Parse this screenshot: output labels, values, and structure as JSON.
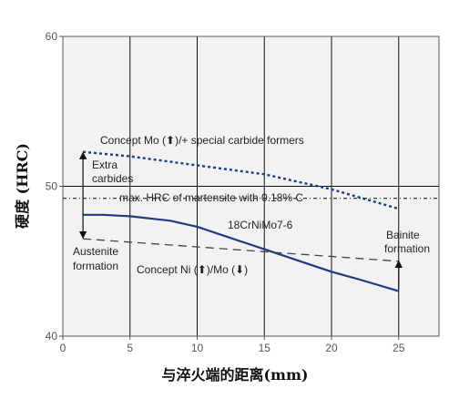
{
  "chart_data": {
    "type": "line",
    "xlabel": "与淬火端的距离(mm)",
    "ylabel": "硬度 (HRC)",
    "xlim": [
      0,
      28
    ],
    "ylim": [
      40,
      60
    ],
    "xticks": [
      0,
      5,
      10,
      15,
      20,
      25
    ],
    "yticks": [
      40,
      50,
      60
    ],
    "grid": true,
    "colors": {
      "plot_bg": "#f2f2f2",
      "grid": "#111111",
      "concept_mo": "#1a3d8f",
      "base": "#1f3c82",
      "concept_ni": "#444444",
      "martensite": "#222222"
    },
    "series": [
      {
        "name": "Concept Mo (↑)/+ special carbide formers",
        "style": "dotted",
        "x": [
          1.5,
          5,
          10,
          15,
          20,
          25
        ],
        "y": [
          52.3,
          52.0,
          51.4,
          50.8,
          49.8,
          48.5
        ]
      },
      {
        "name": "18CrNiMo7-6",
        "style": "solid",
        "x": [
          1.5,
          3,
          5,
          8,
          10,
          12,
          15,
          18,
          20,
          22,
          25
        ],
        "y": [
          48.1,
          48.1,
          48.0,
          47.7,
          47.3,
          46.7,
          45.8,
          44.9,
          44.3,
          43.8,
          43.0
        ]
      },
      {
        "name": "Concept Ni (↑)/Mo (↓)",
        "style": "dashed",
        "x": [
          1.5,
          25
        ],
        "y": [
          46.5,
          45.0
        ]
      },
      {
        "name": "max. HRC of martensite with 0.18% C",
        "style": "dash-dot",
        "x": [
          0,
          28
        ],
        "y": [
          49.2,
          49.2
        ]
      }
    ],
    "annotations": {
      "concept_mo": "Concept Mo (⬆)/+ special carbide formers",
      "extra_carbides": [
        "Extra",
        "carbides"
      ],
      "martensite": "max. HRC of martensite with 0.18% C",
      "base_steel": "18CrNiMo7-6",
      "austenite_formation": [
        "Austenite",
        "formation"
      ],
      "concept_ni": "Concept Ni (⬆)/Mo (⬇)",
      "bainite_formation": [
        "Bainite",
        "formation"
      ]
    }
  }
}
